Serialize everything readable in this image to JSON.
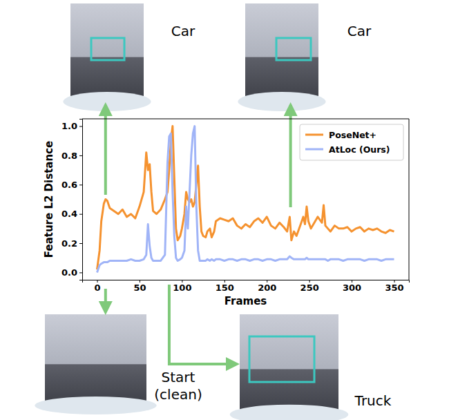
{
  "chart_data": {
    "type": "line",
    "xlabel": "Frames",
    "ylabel": "Feature L2 Distance",
    "x": [
      0,
      3,
      5,
      8,
      10,
      12,
      15,
      20,
      25,
      30,
      35,
      40,
      45,
      50,
      55,
      58,
      60,
      62,
      64,
      66,
      70,
      75,
      80,
      83,
      85,
      87,
      89,
      91,
      93,
      95,
      98,
      100,
      103,
      105,
      107,
      109,
      111,
      113,
      115,
      117,
      119,
      121,
      123,
      125,
      128,
      130,
      133,
      135,
      138,
      140,
      145,
      150,
      155,
      160,
      165,
      170,
      175,
      180,
      185,
      190,
      195,
      200,
      205,
      210,
      215,
      220,
      224,
      227,
      229,
      232,
      235,
      240,
      243,
      245,
      247,
      249,
      252,
      255,
      260,
      265,
      267,
      269,
      272,
      275,
      280,
      285,
      290,
      295,
      300,
      305,
      310,
      315,
      320,
      325,
      330,
      335,
      340,
      345,
      350
    ],
    "series": [
      {
        "name": "PoseNet+",
        "color": "#f5922f",
        "values": [
          0.02,
          0.15,
          0.35,
          0.47,
          0.5,
          0.49,
          0.44,
          0.42,
          0.4,
          0.43,
          0.38,
          0.4,
          0.37,
          0.45,
          0.55,
          0.82,
          0.7,
          0.74,
          0.55,
          0.42,
          0.4,
          0.43,
          0.5,
          0.55,
          0.7,
          0.9,
          1.0,
          0.65,
          0.3,
          0.22,
          0.25,
          0.3,
          0.4,
          0.55,
          0.5,
          0.48,
          0.5,
          0.45,
          0.48,
          0.6,
          0.73,
          0.45,
          0.28,
          0.25,
          0.24,
          0.28,
          0.3,
          0.24,
          0.28,
          0.35,
          0.37,
          0.36,
          0.35,
          0.37,
          0.32,
          0.3,
          0.33,
          0.31,
          0.35,
          0.37,
          0.34,
          0.38,
          0.32,
          0.3,
          0.34,
          0.31,
          0.28,
          0.38,
          0.22,
          0.28,
          0.25,
          0.33,
          0.38,
          0.33,
          0.45,
          0.35,
          0.3,
          0.33,
          0.38,
          0.34,
          0.46,
          0.32,
          0.3,
          0.28,
          0.32,
          0.3,
          0.3,
          0.31,
          0.28,
          0.3,
          0.31,
          0.28,
          0.3,
          0.29,
          0.3,
          0.28,
          0.27,
          0.29,
          0.28
        ]
      },
      {
        "name": "AtLoc (Ours)",
        "color": "#a0b4f7",
        "values": [
          0.0,
          0.05,
          0.06,
          0.07,
          0.07,
          0.07,
          0.08,
          0.08,
          0.08,
          0.08,
          0.08,
          0.09,
          0.08,
          0.08,
          0.09,
          0.12,
          0.33,
          0.18,
          0.1,
          0.08,
          0.08,
          0.08,
          0.12,
          0.75,
          0.93,
          0.95,
          0.55,
          0.25,
          0.1,
          0.08,
          0.09,
          0.1,
          0.15,
          0.45,
          0.3,
          0.55,
          0.8,
          0.95,
          1.0,
          0.45,
          0.15,
          0.08,
          0.08,
          0.08,
          0.08,
          0.09,
          0.08,
          0.09,
          0.08,
          0.09,
          0.09,
          0.08,
          0.09,
          0.09,
          0.08,
          0.09,
          0.09,
          0.08,
          0.09,
          0.09,
          0.08,
          0.09,
          0.09,
          0.08,
          0.09,
          0.09,
          0.09,
          0.11,
          0.1,
          0.09,
          0.09,
          0.09,
          0.09,
          0.09,
          0.1,
          0.09,
          0.09,
          0.09,
          0.09,
          0.09,
          0.09,
          0.09,
          0.08,
          0.09,
          0.09,
          0.09,
          0.08,
          0.09,
          0.09,
          0.09,
          0.09,
          0.08,
          0.09,
          0.09,
          0.09,
          0.08,
          0.09,
          0.09,
          0.09
        ]
      }
    ],
    "xlim": [
      -17.5,
      367.5
    ],
    "ylim": [
      -0.05,
      1.05
    ],
    "xticks": [
      0,
      50,
      100,
      150,
      200,
      250,
      300,
      350
    ],
    "yticks": [
      {
        "value": 0,
        "label": "0.0"
      },
      {
        "value": 0.2,
        "label": "0.2"
      },
      {
        "value": 0.4,
        "label": "0.4"
      },
      {
        "value": 0.6,
        "label": "0.6"
      },
      {
        "value": 0.8,
        "label": "0.8"
      },
      {
        "value": 1,
        "label": "1.0"
      }
    ],
    "grid": false,
    "legend": "upper right",
    "annotations": [
      {
        "text": "Car",
        "x": 10
      },
      {
        "text": "Car",
        "x": 228
      },
      {
        "text": "Start (clean)",
        "x": 10
      },
      {
        "text": "Truck",
        "x": 85
      }
    ]
  }
}
